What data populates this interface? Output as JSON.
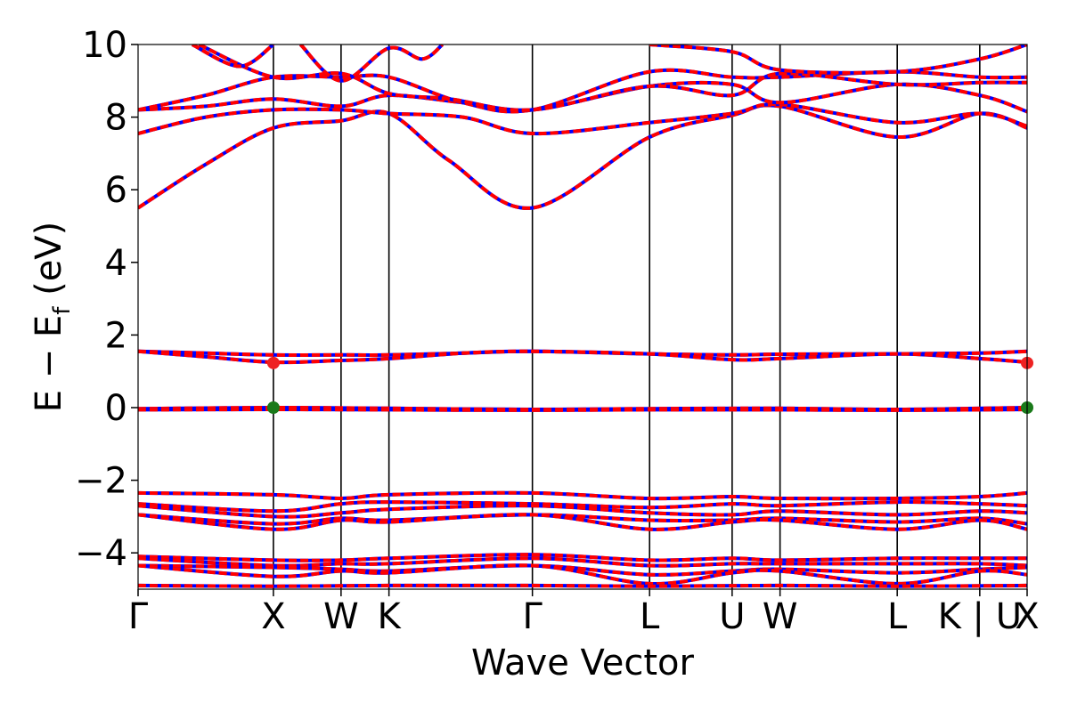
{
  "chart_data": {
    "type": "line",
    "title": "",
    "xlabel": "Wave Vector",
    "ylabel": "E − E",
    "ylabel_subscript": "f",
    "ylabel_unit": " (eV)",
    "ylim": [
      -5,
      10
    ],
    "yticks": [
      10,
      8,
      6,
      4,
      2,
      0,
      -2,
      -4
    ],
    "ytick_labels": [
      "10",
      "8",
      "6",
      "4",
      "2",
      "0",
      "−2",
      "−4"
    ],
    "kpath": {
      "labels": [
        "Γ",
        "X",
        "W",
        "K",
        "Γ",
        "L",
        "U",
        "W",
        "L",
        "K | U",
        "X"
      ],
      "positions": [
        0.0,
        1.0,
        1.5,
        1.854,
        2.914,
        3.78,
        4.39,
        4.744,
        5.61,
        6.22,
        6.57
      ]
    },
    "bands": [
      {
        "points": [
          [
            0,
            5.5
          ],
          [
            0.5,
            6.7
          ],
          [
            1.0,
            7.7
          ],
          [
            1.5,
            7.9
          ],
          [
            1.854,
            8.1
          ],
          [
            2.3,
            6.8
          ],
          [
            2.914,
            5.5
          ],
          [
            3.78,
            7.45
          ],
          [
            4.39,
            8.05
          ],
          [
            4.744,
            8.3
          ],
          [
            5.61,
            7.45
          ],
          [
            6.22,
            8.1
          ],
          [
            6.57,
            7.7
          ]
        ]
      },
      {
        "points": [
          [
            0,
            7.55
          ],
          [
            0.5,
            8.0
          ],
          [
            1.0,
            8.2
          ],
          [
            1.5,
            8.2
          ],
          [
            1.854,
            8.1
          ],
          [
            2.4,
            8.0
          ],
          [
            2.914,
            7.55
          ],
          [
            3.78,
            7.85
          ],
          [
            4.39,
            8.1
          ],
          [
            4.744,
            8.35
          ],
          [
            5.61,
            7.85
          ],
          [
            6.22,
            8.1
          ],
          [
            6.57,
            7.75
          ]
        ]
      },
      {
        "points": [
          [
            0,
            8.2
          ],
          [
            0.5,
            8.3
          ],
          [
            1.0,
            8.5
          ],
          [
            1.5,
            8.3
          ],
          [
            1.854,
            8.6
          ],
          [
            2.4,
            8.4
          ],
          [
            2.914,
            8.2
          ],
          [
            3.78,
            8.85
          ],
          [
            4.39,
            8.9
          ],
          [
            4.744,
            8.4
          ],
          [
            5.61,
            8.9
          ],
          [
            6.22,
            8.6
          ],
          [
            6.57,
            8.15
          ]
        ]
      },
      {
        "points": [
          [
            0,
            8.2
          ],
          [
            0.5,
            8.6
          ],
          [
            1.0,
            9.1
          ],
          [
            1.5,
            9.1
          ],
          [
            1.854,
            9.1
          ],
          [
            2.4,
            8.4
          ],
          [
            2.914,
            8.2
          ],
          [
            3.78,
            9.25
          ],
          [
            4.39,
            9.1
          ],
          [
            4.744,
            9.1
          ],
          [
            5.61,
            9.25
          ],
          [
            6.22,
            9.1
          ],
          [
            6.57,
            9.1
          ]
        ]
      },
      {
        "points": [
          [
            0.45,
            10.0
          ],
          [
            1.0,
            9.1
          ],
          [
            1.5,
            9.2
          ],
          [
            1.854,
            8.65
          ],
          [
            2.3,
            8.5
          ],
          [
            2.914,
            8.2
          ],
          [
            3.78,
            8.85
          ],
          [
            4.39,
            8.6
          ],
          [
            4.744,
            9.2
          ],
          [
            5.61,
            8.9
          ],
          [
            6.22,
            8.95
          ],
          [
            6.57,
            8.95
          ]
        ]
      },
      {
        "points": [
          [
            0.4,
            10.0
          ],
          [
            0.75,
            9.4
          ],
          [
            1.0,
            10.0
          ]
        ]
      },
      {
        "points": [
          [
            1.2,
            10.0
          ],
          [
            1.5,
            9.0
          ],
          [
            1.854,
            9.9
          ],
          [
            2.1,
            9.6
          ],
          [
            2.25,
            10.0
          ]
        ]
      },
      {
        "points": [
          [
            3.78,
            10.0
          ],
          [
            4.39,
            9.8
          ],
          [
            4.744,
            9.3
          ],
          [
            5.61,
            9.25
          ],
          [
            6.22,
            9.6
          ],
          [
            6.57,
            10.0
          ]
        ]
      },
      {
        "points": [
          [
            0,
            1.55
          ],
          [
            0.5,
            1.5
          ],
          [
            1.0,
            1.45
          ],
          [
            1.5,
            1.45
          ],
          [
            1.854,
            1.45
          ],
          [
            2.4,
            1.5
          ],
          [
            2.914,
            1.55
          ],
          [
            3.78,
            1.48
          ],
          [
            4.39,
            1.45
          ],
          [
            4.744,
            1.47
          ],
          [
            5.61,
            1.48
          ],
          [
            6.22,
            1.5
          ],
          [
            6.57,
            1.55
          ]
        ]
      },
      {
        "points": [
          [
            0,
            1.55
          ],
          [
            0.5,
            1.4
          ],
          [
            1.0,
            1.25
          ],
          [
            1.5,
            1.3
          ],
          [
            1.854,
            1.35
          ],
          [
            2.4,
            1.5
          ],
          [
            2.914,
            1.55
          ],
          [
            3.78,
            1.48
          ],
          [
            4.39,
            1.32
          ],
          [
            4.744,
            1.35
          ],
          [
            5.61,
            1.48
          ],
          [
            6.22,
            1.35
          ],
          [
            6.57,
            1.25
          ]
        ]
      },
      {
        "points": [
          [
            0,
            -0.03
          ],
          [
            1.0,
            0.0
          ],
          [
            1.854,
            -0.02
          ],
          [
            2.914,
            -0.05
          ],
          [
            3.78,
            -0.03
          ],
          [
            4.744,
            -0.02
          ],
          [
            5.61,
            -0.05
          ],
          [
            6.57,
            0.0
          ]
        ]
      },
      {
        "points": [
          [
            0,
            -0.06
          ],
          [
            1.0,
            -0.05
          ],
          [
            1.854,
            -0.06
          ],
          [
            2.914,
            -0.07
          ],
          [
            3.78,
            -0.06
          ],
          [
            4.744,
            -0.06
          ],
          [
            5.61,
            -0.07
          ],
          [
            6.57,
            -0.05
          ]
        ]
      },
      {
        "points": [
          [
            0,
            -2.35
          ],
          [
            1.0,
            -2.4
          ],
          [
            1.5,
            -2.5
          ],
          [
            1.854,
            -2.4
          ],
          [
            2.914,
            -2.35
          ],
          [
            3.78,
            -2.5
          ],
          [
            4.39,
            -2.45
          ],
          [
            4.744,
            -2.5
          ],
          [
            5.61,
            -2.5
          ],
          [
            6.22,
            -2.45
          ],
          [
            6.57,
            -2.35
          ]
        ]
      },
      {
        "points": [
          [
            0,
            -2.65
          ],
          [
            1.0,
            -2.85
          ],
          [
            1.5,
            -2.65
          ],
          [
            1.854,
            -2.6
          ],
          [
            2.914,
            -2.65
          ],
          [
            3.78,
            -2.75
          ],
          [
            4.39,
            -2.65
          ],
          [
            4.744,
            -2.7
          ],
          [
            5.61,
            -2.6
          ],
          [
            6.22,
            -2.65
          ],
          [
            6.57,
            -2.7
          ]
        ]
      },
      {
        "points": [
          [
            0,
            -2.7
          ],
          [
            1.0,
            -3.0
          ],
          [
            1.5,
            -2.9
          ],
          [
            1.854,
            -2.8
          ],
          [
            2.914,
            -2.7
          ],
          [
            3.78,
            -2.9
          ],
          [
            4.39,
            -2.95
          ],
          [
            4.744,
            -2.85
          ],
          [
            5.61,
            -2.95
          ],
          [
            6.22,
            -2.85
          ],
          [
            6.57,
            -2.9
          ]
        ]
      },
      {
        "points": [
          [
            0,
            -2.95
          ],
          [
            1.0,
            -3.2
          ],
          [
            1.5,
            -3.05
          ],
          [
            1.854,
            -3.1
          ],
          [
            2.914,
            -2.95
          ],
          [
            3.78,
            -3.1
          ],
          [
            4.39,
            -3.1
          ],
          [
            4.744,
            -3.05
          ],
          [
            5.61,
            -3.15
          ],
          [
            6.22,
            -3.05
          ],
          [
            6.57,
            -3.2
          ]
        ]
      },
      {
        "points": [
          [
            0,
            -2.95
          ],
          [
            1.0,
            -3.35
          ],
          [
            1.5,
            -3.1
          ],
          [
            1.854,
            -3.15
          ],
          [
            2.914,
            -2.95
          ],
          [
            3.78,
            -3.35
          ],
          [
            4.39,
            -3.15
          ],
          [
            4.744,
            -3.1
          ],
          [
            5.61,
            -3.35
          ],
          [
            6.22,
            -3.1
          ],
          [
            6.57,
            -3.35
          ]
        ]
      },
      {
        "points": [
          [
            0,
            -4.1
          ],
          [
            1.0,
            -4.2
          ],
          [
            1.5,
            -4.2
          ],
          [
            1.854,
            -4.15
          ],
          [
            2.914,
            -4.05
          ],
          [
            3.78,
            -4.2
          ],
          [
            4.39,
            -4.15
          ],
          [
            4.744,
            -4.2
          ],
          [
            5.61,
            -4.15
          ],
          [
            6.22,
            -4.15
          ],
          [
            6.57,
            -4.15
          ]
        ]
      },
      {
        "points": [
          [
            0,
            -4.15
          ],
          [
            1.0,
            -4.35
          ],
          [
            1.5,
            -4.3
          ],
          [
            1.854,
            -4.3
          ],
          [
            2.914,
            -4.15
          ],
          [
            3.78,
            -4.35
          ],
          [
            4.39,
            -4.3
          ],
          [
            4.744,
            -4.3
          ],
          [
            5.61,
            -4.3
          ],
          [
            6.22,
            -4.3
          ],
          [
            6.57,
            -4.35
          ]
        ]
      },
      {
        "points": [
          [
            0,
            -4.35
          ],
          [
            1.0,
            -4.4
          ],
          [
            1.5,
            -4.45
          ],
          [
            1.854,
            -4.5
          ],
          [
            2.914,
            -4.35
          ],
          [
            3.78,
            -4.6
          ],
          [
            4.39,
            -4.5
          ],
          [
            4.744,
            -4.45
          ],
          [
            5.61,
            -4.55
          ],
          [
            6.22,
            -4.45
          ],
          [
            6.57,
            -4.4
          ]
        ]
      },
      {
        "points": [
          [
            0,
            -4.35
          ],
          [
            1.0,
            -4.65
          ],
          [
            1.5,
            -4.5
          ],
          [
            1.854,
            -4.55
          ],
          [
            2.914,
            -4.35
          ],
          [
            3.78,
            -4.85
          ],
          [
            4.39,
            -4.55
          ],
          [
            4.744,
            -4.5
          ],
          [
            5.61,
            -4.85
          ],
          [
            6.22,
            -4.5
          ],
          [
            6.57,
            -4.6
          ]
        ]
      },
      {
        "points": [
          [
            0,
            -4.9
          ],
          [
            1.0,
            -4.92
          ],
          [
            1.854,
            -4.9
          ],
          [
            2.914,
            -4.9
          ],
          [
            3.78,
            -4.92
          ],
          [
            4.744,
            -4.9
          ],
          [
            5.61,
            -4.92
          ],
          [
            6.57,
            -4.9
          ]
        ]
      }
    ],
    "markers": [
      {
        "x": 1.0,
        "y": 1.23,
        "color": "#ee2222"
      },
      {
        "x": 6.57,
        "y": 1.23,
        "color": "#ee2222"
      },
      {
        "x": 1.0,
        "y": 0.0,
        "color": "#1a7a1a"
      },
      {
        "x": 6.57,
        "y": 0.0,
        "color": "#1a7a1a"
      }
    ],
    "colors": {
      "spin_up": "#0000ff",
      "spin_down": "#ff0000",
      "kpath_line": "#000000"
    },
    "grid": false,
    "legend": "none"
  }
}
